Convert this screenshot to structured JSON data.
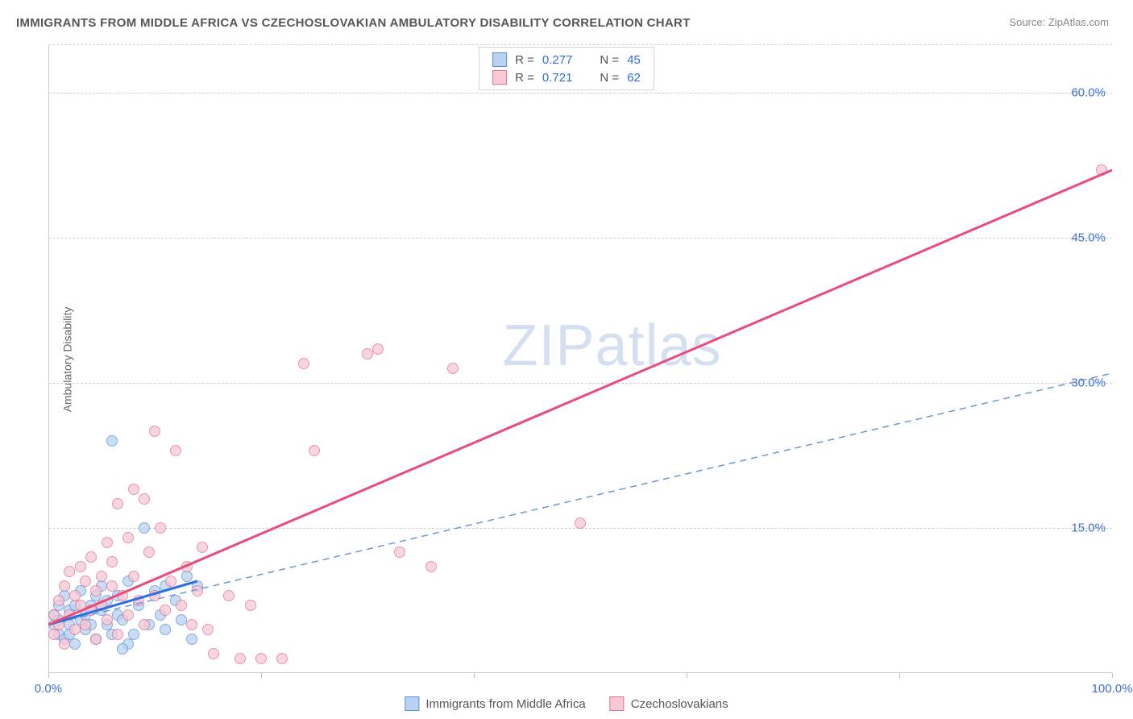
{
  "title": "IMMIGRANTS FROM MIDDLE AFRICA VS CZECHOSLOVAKIAN AMBULATORY DISABILITY CORRELATION CHART",
  "source_label": "Source:",
  "source_value": "ZipAtlas.com",
  "yaxis_label": "Ambulatory Disability",
  "watermark_zip": "ZIP",
  "watermark_atlas": "atlas",
  "chart": {
    "type": "scatter",
    "xlim": [
      0,
      100
    ],
    "ylim": [
      0,
      65
    ],
    "background_color": "#ffffff",
    "grid_color": "#d0d0d0",
    "grid_style": "dashed",
    "tick_fontsize": 15,
    "tick_color": "#3b6fd6",
    "label_color": "#666666",
    "label_fontsize": 14,
    "yticks": [
      {
        "v": 15,
        "label": "15.0%"
      },
      {
        "v": 30,
        "label": "30.0%"
      },
      {
        "v": 45,
        "label": "45.0%"
      },
      {
        "v": 60,
        "label": "60.0%"
      }
    ],
    "xticks": [
      {
        "v": 0,
        "label": "0.0%"
      },
      {
        "v": 20,
        "label": ""
      },
      {
        "v": 40,
        "label": ""
      },
      {
        "v": 60,
        "label": ""
      },
      {
        "v": 80,
        "label": ""
      },
      {
        "v": 100,
        "label": "100.0%"
      }
    ],
    "marker_size": 14,
    "marker_opacity": 0.75,
    "series": [
      {
        "id": "middle_africa",
        "label": "Immigrants from Middle Africa",
        "marker_fill": "#b9d2f2",
        "marker_stroke": "#5b8fd8",
        "line_color": "#2d6fe0",
        "line_dashed_color": "#6a96d8",
        "r": 0.277,
        "n": 45,
        "trend_solid": {
          "x1": 0,
          "y1": 5.0,
          "x2": 14,
          "y2": 9.5
        },
        "trend_dashed": {
          "x1": 0,
          "y1": 5.0,
          "x2": 100,
          "y2": 31.0
        },
        "points": [
          {
            "x": 0.5,
            "y": 5
          },
          {
            "x": 0.5,
            "y": 6
          },
          {
            "x": 1,
            "y": 4
          },
          {
            "x": 1,
            "y": 5.5
          },
          {
            "x": 1,
            "y": 7
          },
          {
            "x": 1.5,
            "y": 3.5
          },
          {
            "x": 1.5,
            "y": 8
          },
          {
            "x": 2,
            "y": 5
          },
          {
            "x": 2,
            "y": 4
          },
          {
            "x": 2,
            "y": 6.5
          },
          {
            "x": 2.5,
            "y": 7
          },
          {
            "x": 2.5,
            "y": 3
          },
          {
            "x": 3,
            "y": 5.5
          },
          {
            "x": 3,
            "y": 8.5
          },
          {
            "x": 3.5,
            "y": 6
          },
          {
            "x": 3.5,
            "y": 4.5
          },
          {
            "x": 4,
            "y": 7
          },
          {
            "x": 4,
            "y": 5
          },
          {
            "x": 4.5,
            "y": 8
          },
          {
            "x": 4.5,
            "y": 3.5
          },
          {
            "x": 5,
            "y": 6.5
          },
          {
            "x": 5,
            "y": 9
          },
          {
            "x": 5.5,
            "y": 5
          },
          {
            "x": 5.5,
            "y": 7.5
          },
          {
            "x": 6,
            "y": 4
          },
          {
            "x": 6,
            "y": 24
          },
          {
            "x": 6.5,
            "y": 8
          },
          {
            "x": 6.5,
            "y": 6
          },
          {
            "x": 7,
            "y": 5.5
          },
          {
            "x": 7.5,
            "y": 9.5
          },
          {
            "x": 7.5,
            "y": 3
          },
          {
            "x": 8,
            "y": 4
          },
          {
            "x": 8.5,
            "y": 7
          },
          {
            "x": 9,
            "y": 15
          },
          {
            "x": 9.5,
            "y": 5
          },
          {
            "x": 10,
            "y": 8.5
          },
          {
            "x": 10.5,
            "y": 6
          },
          {
            "x": 11,
            "y": 9
          },
          {
            "x": 11,
            "y": 4.5
          },
          {
            "x": 12,
            "y": 7.5
          },
          {
            "x": 12.5,
            "y": 5.5
          },
          {
            "x": 13,
            "y": 10
          },
          {
            "x": 13.5,
            "y": 3.5
          },
          {
            "x": 14,
            "y": 9
          },
          {
            "x": 7,
            "y": 2.5
          }
        ]
      },
      {
        "id": "czechoslovakians",
        "label": "Czechoslovakians",
        "marker_fill": "#f6c9d5",
        "marker_stroke": "#e56e92",
        "line_color": "#e94b7a",
        "r": 0.721,
        "n": 62,
        "trend_solid": {
          "x1": 0,
          "y1": 5.0,
          "x2": 100,
          "y2": 52.0
        },
        "points": [
          {
            "x": 0.5,
            "y": 4
          },
          {
            "x": 0.5,
            "y": 6
          },
          {
            "x": 1,
            "y": 5
          },
          {
            "x": 1,
            "y": 7.5
          },
          {
            "x": 1.5,
            "y": 3
          },
          {
            "x": 1.5,
            "y": 9
          },
          {
            "x": 2,
            "y": 6
          },
          {
            "x": 2,
            "y": 10.5
          },
          {
            "x": 2.5,
            "y": 4.5
          },
          {
            "x": 2.5,
            "y": 8
          },
          {
            "x": 3,
            "y": 7
          },
          {
            "x": 3,
            "y": 11
          },
          {
            "x": 3.5,
            "y": 5
          },
          {
            "x": 3.5,
            "y": 9.5
          },
          {
            "x": 4,
            "y": 12
          },
          {
            "x": 4,
            "y": 6.5
          },
          {
            "x": 4.5,
            "y": 8.5
          },
          {
            "x": 4.5,
            "y": 3.5
          },
          {
            "x": 5,
            "y": 10
          },
          {
            "x": 5,
            "y": 7
          },
          {
            "x": 5.5,
            "y": 13.5
          },
          {
            "x": 5.5,
            "y": 5.5
          },
          {
            "x": 6,
            "y": 9
          },
          {
            "x": 6,
            "y": 11.5
          },
          {
            "x": 6.5,
            "y": 17.5
          },
          {
            "x": 6.5,
            "y": 4
          },
          {
            "x": 7,
            "y": 8
          },
          {
            "x": 7.5,
            "y": 14
          },
          {
            "x": 7.5,
            "y": 6
          },
          {
            "x": 8,
            "y": 19
          },
          {
            "x": 8,
            "y": 10
          },
          {
            "x": 8.5,
            "y": 7.5
          },
          {
            "x": 9,
            "y": 18
          },
          {
            "x": 9,
            "y": 5
          },
          {
            "x": 9.5,
            "y": 12.5
          },
          {
            "x": 10,
            "y": 8
          },
          {
            "x": 10,
            "y": 25
          },
          {
            "x": 10.5,
            "y": 15
          },
          {
            "x": 11,
            "y": 6.5
          },
          {
            "x": 11.5,
            "y": 9.5
          },
          {
            "x": 12,
            "y": 23
          },
          {
            "x": 12.5,
            "y": 7
          },
          {
            "x": 13,
            "y": 11
          },
          {
            "x": 13.5,
            "y": 5
          },
          {
            "x": 14,
            "y": 8.5
          },
          {
            "x": 14.5,
            "y": 13
          },
          {
            "x": 15,
            "y": 4.5
          },
          {
            "x": 15.5,
            "y": 2
          },
          {
            "x": 17,
            "y": 8
          },
          {
            "x": 18,
            "y": 1.5
          },
          {
            "x": 19,
            "y": 7
          },
          {
            "x": 20,
            "y": 1.5
          },
          {
            "x": 22,
            "y": 1.5
          },
          {
            "x": 24,
            "y": 32
          },
          {
            "x": 25,
            "y": 23
          },
          {
            "x": 30,
            "y": 33
          },
          {
            "x": 31,
            "y": 33.5
          },
          {
            "x": 33,
            "y": 12.5
          },
          {
            "x": 36,
            "y": 11
          },
          {
            "x": 38,
            "y": 31.5
          },
          {
            "x": 50,
            "y": 15.5
          },
          {
            "x": 99,
            "y": 52
          }
        ]
      }
    ],
    "legend_top": {
      "rows": [
        {
          "swatch_fill": "#b9d2f2",
          "swatch_stroke": "#5b8fd8",
          "r_label": "R =",
          "r_value": "0.277",
          "n_label": "N =",
          "n_value": "45"
        },
        {
          "swatch_fill": "#f6c9d5",
          "swatch_stroke": "#e56e92",
          "r_label": "R =",
          "r_value": "0.721",
          "n_label": "N =",
          "n_value": "62"
        }
      ]
    },
    "legend_bottom": [
      {
        "swatch_fill": "#b9d2f2",
        "swatch_stroke": "#5b8fd8",
        "label": "Immigrants from Middle Africa"
      },
      {
        "swatch_fill": "#f6c9d5",
        "swatch_stroke": "#e56e92",
        "label": "Czechoslovakians"
      }
    ]
  }
}
